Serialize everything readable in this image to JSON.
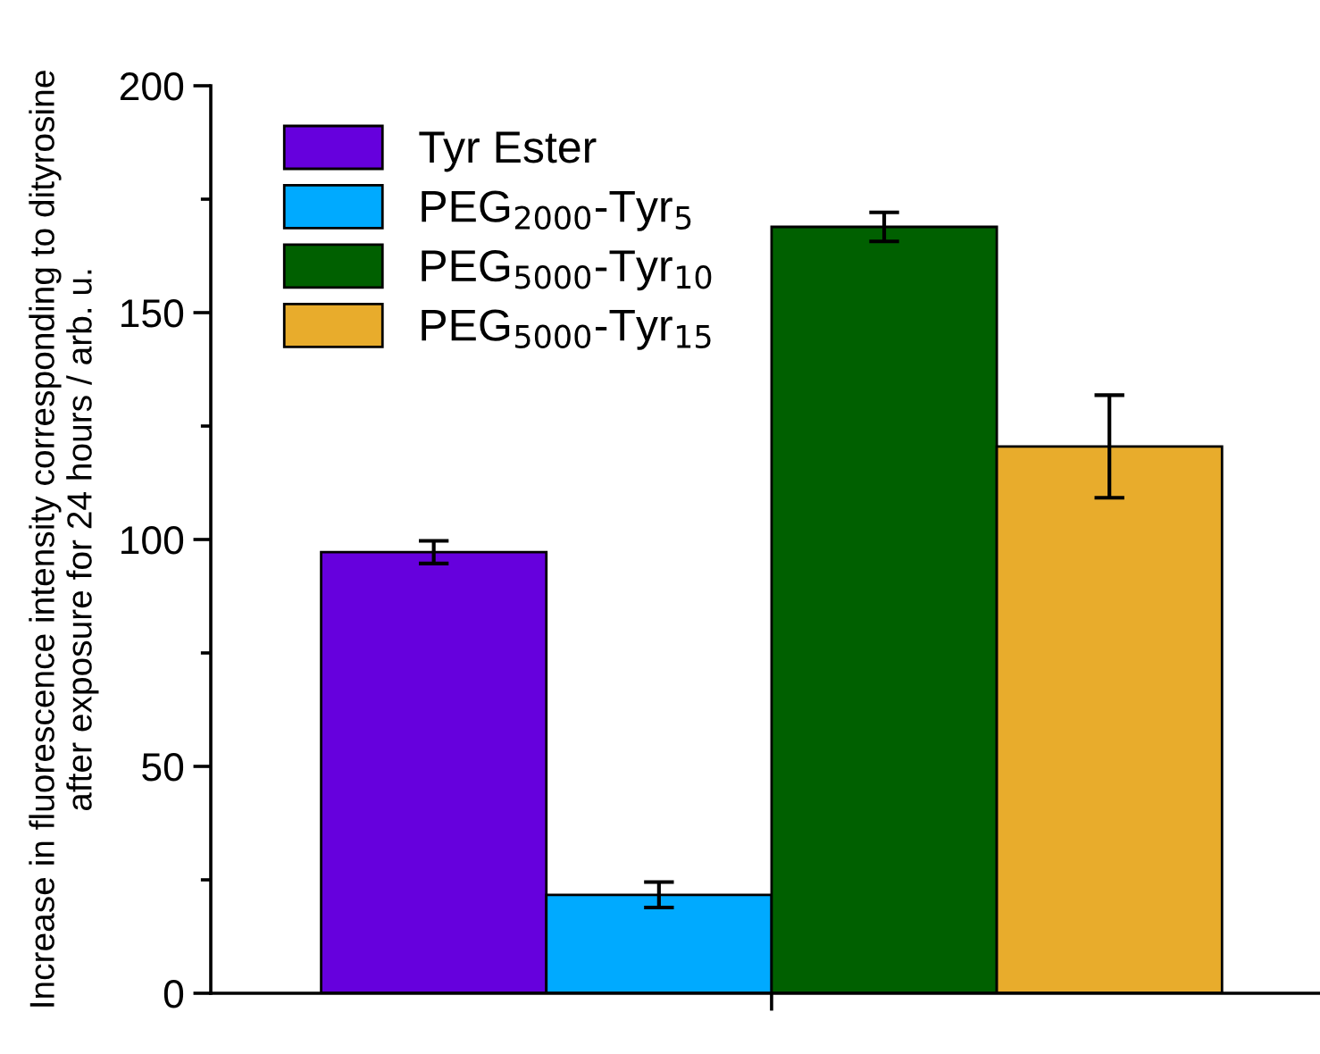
{
  "chart_data": {
    "type": "bar",
    "ylabel": "Increase in fluorescence intensity corresponding to dityrosine\nafter exposure for 24 hours / arb. u.",
    "categories": [
      null
    ],
    "series": [
      {
        "name": "Tyr Ester",
        "color": "#6600dd",
        "values": [
          97.2
        ],
        "errors": [
          2.5
        ]
      },
      {
        "name": "PEG$_{2000}$-Tyr$_{5}$",
        "color": "#00aaff",
        "values": [
          21.7
        ],
        "errors": [
          2.8
        ]
      },
      {
        "name": "PEG$_{5000}$-Tyr$_{10}$",
        "color": "#006000",
        "values": [
          168.9
        ],
        "errors": [
          3.2
        ]
      },
      {
        "name": "PEG$_{5000}$-Tyr$_{15}$",
        "color": "#e8ac2c",
        "values": [
          120.5
        ],
        "errors": [
          11.3
        ]
      }
    ],
    "ylim": [
      0,
      200
    ],
    "yticks": [
      0,
      {
        "value": 25,
        "label": null
      },
      50,
      {
        "value": 75,
        "label": null
      },
      100,
      {
        "value": 125,
        "label": null
      },
      150,
      {
        "value": 175,
        "label": null
      },
      200
    ],
    "grid": false,
    "legend": "top left"
  }
}
